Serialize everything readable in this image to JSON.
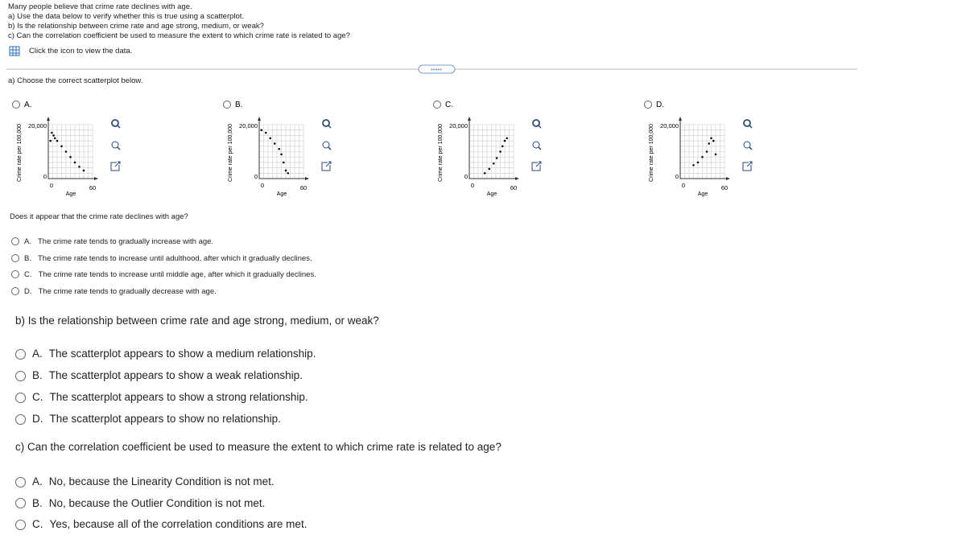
{
  "intro": {
    "lines": [
      "Many people believe that crime rate declines with age.",
      "a) Use the data below to verify whether this is true using a scatterplot.",
      "b) Is the relationship between crime rate and age strong, medium, or weak?",
      "c) Can the correlation coefficient be used to measure the extent to which crime rate is related to age?"
    ],
    "data_link": "Click the icon to view the data."
  },
  "part_a": {
    "prompt": "a) Choose the correct scatterplot below.",
    "axes": {
      "y_label": "Crime rate per 100,000",
      "y_top": "20,000",
      "y_bottom": "0",
      "x_left": "0",
      "x_right": "60",
      "x_label": "Age"
    },
    "plot_options": [
      "A.",
      "B.",
      "C.",
      "D."
    ],
    "question": "Does it appear that the crime rate declines with age?",
    "options": [
      {
        "letter": "A.",
        "text": "The crime rate tends to gradually increase with age."
      },
      {
        "letter": "B.",
        "text": "The crime rate tends to increase until adulthood, after which it gradually declines."
      },
      {
        "letter": "C.",
        "text": "The crime rate tends to increase until middle age, after which it gradually declines."
      },
      {
        "letter": "D.",
        "text": "The crime rate tends to gradually decrease with age."
      }
    ]
  },
  "part_b": {
    "question": "b) Is the relationship between crime rate and age strong, medium, or weak?",
    "options": [
      {
        "letter": "A.",
        "text": "The scatterplot appears to show a medium relationship."
      },
      {
        "letter": "B.",
        "text": "The scatterplot appears to show a weak relationship."
      },
      {
        "letter": "C.",
        "text": "The scatterplot appears to show a strong relationship."
      },
      {
        "letter": "D.",
        "text": "The scatterplot appears to show no relationship."
      }
    ]
  },
  "part_c": {
    "question": "c) Can the correlation coefficient be used to measure the extent to which crime rate is related to age?",
    "options": [
      {
        "letter": "A.",
        "text": "No, because the Linearity Condition is not met."
      },
      {
        "letter": "B.",
        "text": "No, because the Outlier Condition is not met."
      },
      {
        "letter": "C.",
        "text": "Yes, because all of the correlation conditions are met."
      }
    ]
  }
}
